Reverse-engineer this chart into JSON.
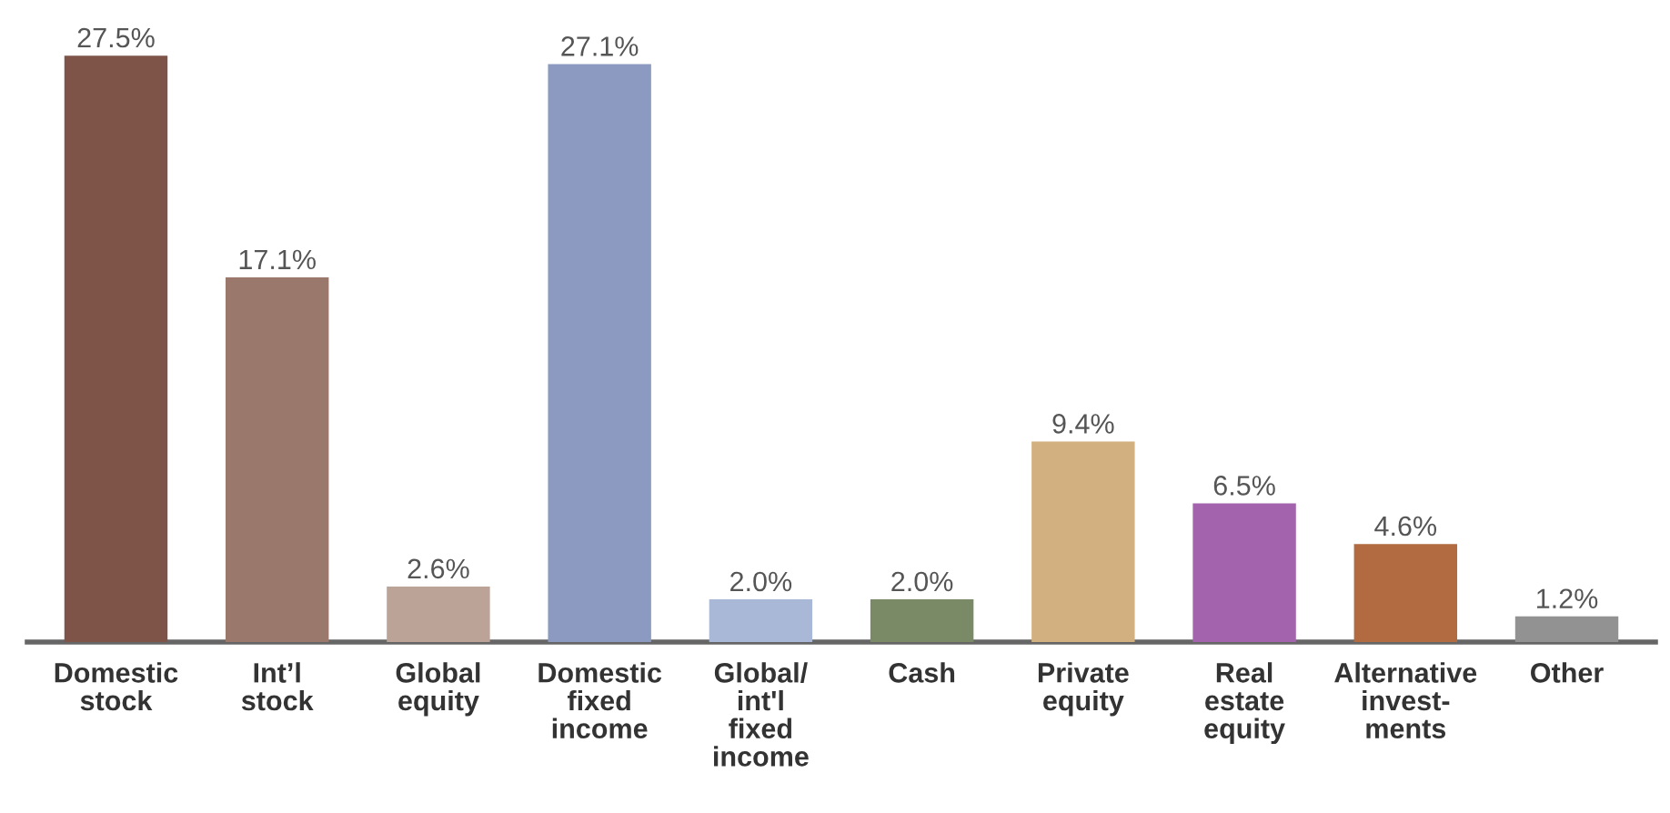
{
  "chart_data": {
    "type": "bar",
    "categories": [
      "Domestic\nstock",
      "Int’l\nstock",
      "Global\nequity",
      "Domestic\nfixed\nincome",
      "Global/\nint'l\nfixed\nincome",
      "Cash",
      "Private\nequity",
      "Real\nestate\nequity",
      "Alternative\ninvest-\nments",
      "Other"
    ],
    "values": [
      27.5,
      17.1,
      2.6,
      27.1,
      2.0,
      2.0,
      9.4,
      6.5,
      4.6,
      1.2
    ],
    "value_labels": [
      "27.5%",
      "17.1%",
      "2.6%",
      "27.1%",
      "2.0%",
      "2.0%",
      "9.4%",
      "6.5%",
      "4.6%",
      "1.2%"
    ],
    "colors": [
      "#7d5447",
      "#9a786c",
      "#bca398",
      "#8c9ac1",
      "#a9b8d6",
      "#7a8a66",
      "#d3b07f",
      "#a364ad",
      "#b26b40",
      "#929292"
    ],
    "legend": false
  }
}
